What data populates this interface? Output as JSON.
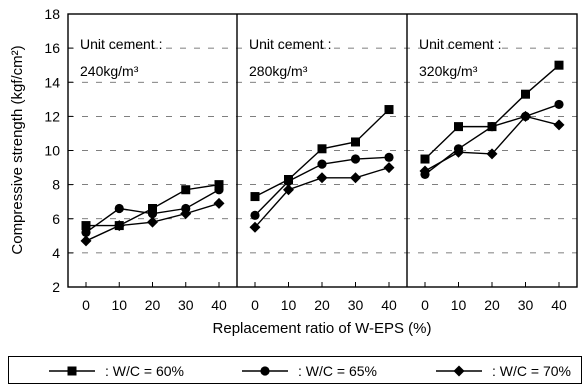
{
  "chart_data": {
    "type": "line",
    "ylabel": "Compressive strength (kgf/cm²)",
    "xlabel": "Replacement ratio of W-EPS (%)",
    "ylim": [
      2,
      18
    ],
    "yticks": [
      2,
      4,
      6,
      8,
      10,
      12,
      14,
      16,
      18
    ],
    "x": [
      0,
      10,
      20,
      30,
      40
    ],
    "xtick_labels": [
      "0",
      "10",
      "20",
      "30",
      "40"
    ],
    "grid": "horizontal-dashed",
    "legend_position": "bottom",
    "legend": [
      {
        "label": ": W/C = 60%",
        "marker": "square"
      },
      {
        "label": ": W/C = 65%",
        "marker": "circle"
      },
      {
        "label": ": W/C = 70%",
        "marker": "diamond"
      }
    ],
    "panels": [
      {
        "title_line1": "Unit cement :",
        "title_line2": "240kg/m³",
        "series": [
          {
            "marker": "square",
            "values": [
              5.6,
              5.6,
              6.6,
              7.7,
              8.0
            ]
          },
          {
            "marker": "circle",
            "values": [
              5.2,
              6.6,
              6.3,
              6.6,
              7.7
            ]
          },
          {
            "marker": "diamond",
            "values": [
              4.7,
              5.6,
              5.8,
              6.3,
              6.9
            ]
          }
        ]
      },
      {
        "title_line1": "Unit cement :",
        "title_line2": "280kg/m³",
        "series": [
          {
            "marker": "square",
            "values": [
              7.3,
              8.3,
              10.1,
              10.5,
              12.4
            ]
          },
          {
            "marker": "circle",
            "values": [
              6.2,
              8.2,
              9.2,
              9.5,
              9.6
            ]
          },
          {
            "marker": "diamond",
            "values": [
              5.5,
              7.7,
              8.4,
              8.4,
              9.0
            ]
          }
        ]
      },
      {
        "title_line1": "Unit cement :",
        "title_line2": "320kg/m³",
        "series": [
          {
            "marker": "square",
            "values": [
              9.5,
              11.4,
              11.4,
              13.3,
              15.0
            ]
          },
          {
            "marker": "circle",
            "values": [
              8.6,
              10.1,
              11.4,
              12.0,
              12.7
            ]
          },
          {
            "marker": "diamond",
            "values": [
              8.8,
              9.9,
              9.8,
              12.0,
              11.5
            ]
          }
        ]
      }
    ]
  }
}
